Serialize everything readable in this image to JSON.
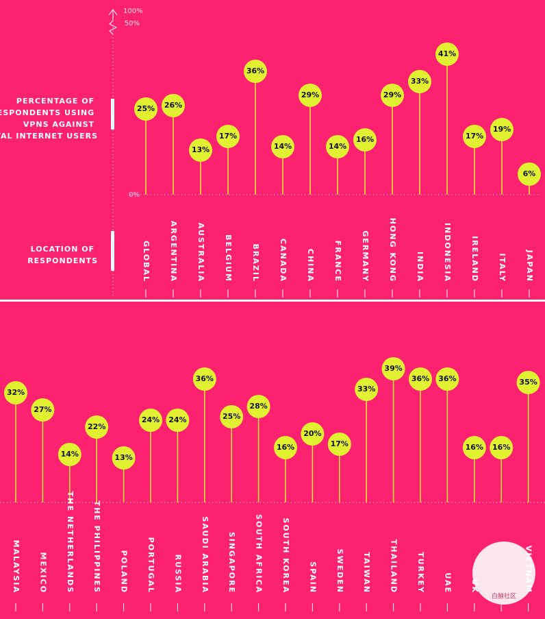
{
  "chart_data": [
    {
      "type": "lollipop",
      "y_axis_label": [
        "PERCENTAGE OF",
        "RESPONDENTS USING",
        "VPNS AGAINST",
        "TOTAL INTERNET USERS"
      ],
      "x_axis_label": [
        "LOCATION OF",
        "RESPONDENTS"
      ],
      "y_break_label": "100%",
      "categories": [
        "GLOBAL",
        "ARGENTINA",
        "AUSTRALIA",
        "BELGIUM",
        "BRAZIL",
        "CANADA",
        "CHINA",
        "FRANCE",
        "GERMANY",
        "HONG KONG",
        "INDIA",
        "INDONESIA",
        "IRELAND",
        "ITALY",
        "JAPAN"
      ],
      "values": [
        25,
        26,
        13,
        17,
        36,
        14,
        29,
        14,
        16,
        29,
        33,
        41,
        17,
        19,
        6
      ],
      "value_labels": [
        "25%",
        "26%",
        "13%",
        "17%",
        "36%",
        "14%",
        "29%",
        "14%",
        "16%",
        "29%",
        "33%",
        "41%",
        "17%",
        "19%",
        "6%"
      ],
      "color": "#e2f032",
      "ylim": [
        0,
        50
      ],
      "yticks": [
        {
          "value": 0,
          "label": "0%"
        },
        {
          "value": 50,
          "label": "50%"
        }
      ]
    },
    {
      "type": "lollipop",
      "categories": [
        "MALAYSIA",
        "MEXICO",
        "THE NETHERLANDS",
        "THE PHILIPPINES",
        "POLAND",
        "PORTUGAL",
        "RUSSIA",
        "SAUDI ARABIA",
        "SINGAPORE",
        "SOUTH AFRICA",
        "SOUTH KOREA",
        "SPAIN",
        "SWEDEN",
        "TAIWAN",
        "THAILAND",
        "TURKEY",
        "UAE",
        "UK",
        null,
        "VIETNAM"
      ],
      "values": [
        32,
        27,
        14,
        22,
        13,
        24,
        24,
        36,
        25,
        28,
        16,
        20,
        17,
        33,
        39,
        36,
        36,
        16,
        16,
        35
      ],
      "value_labels": [
        "32%",
        "27%",
        "14%",
        "22%",
        "13%",
        "24%",
        "24%",
        "36%",
        "25%",
        "28%",
        "16%",
        "20%",
        "17%",
        "33%",
        "39%",
        "36%",
        "36%",
        "16%",
        "16%",
        "35%"
      ],
      "color": "#e2f032",
      "ylim": [
        0,
        50
      ]
    }
  ],
  "watermark": "白鲸社区"
}
